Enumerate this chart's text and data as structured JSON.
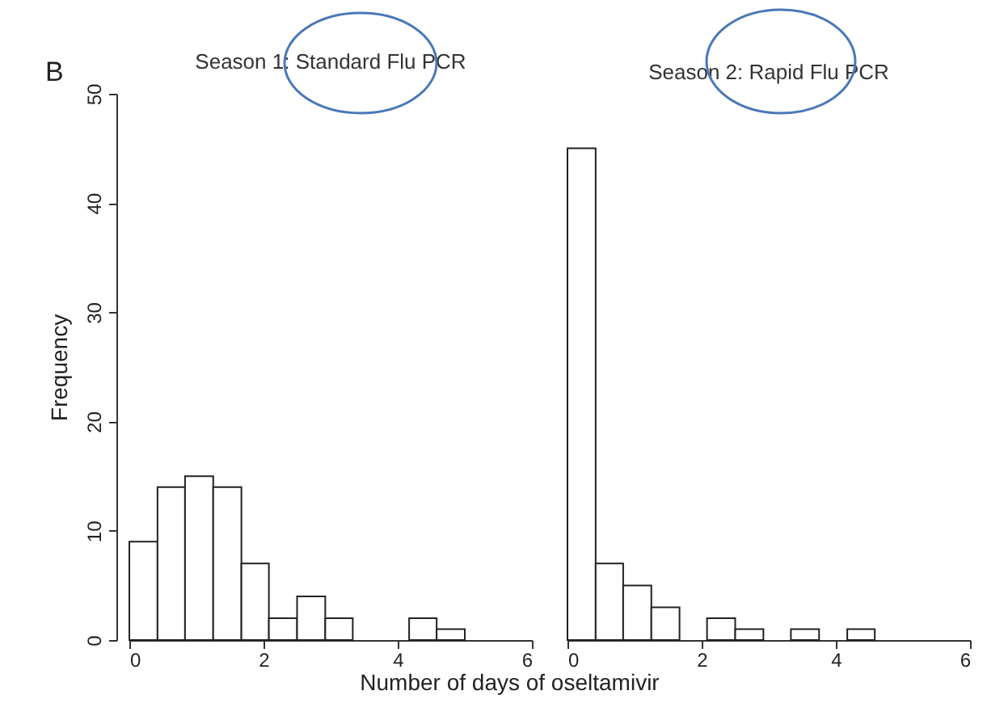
{
  "chart_data": [
    {
      "type": "histogram",
      "title": "Season 1: Standard Flu PCR",
      "ylabel": "Frequency",
      "xlabel": "Number of days of oseltamivir",
      "annotations": [
        "B"
      ],
      "color": "#ffffff",
      "bins": [
        0,
        0.42,
        0.83,
        1.25,
        1.67,
        2.08,
        2.5,
        2.92,
        3.33,
        4.17,
        4.58,
        5
      ],
      "values": [
        9,
        14,
        15,
        14,
        7,
        2,
        4,
        2,
        0,
        2,
        1
      ],
      "xlim": [
        0,
        6
      ],
      "xticks": [
        0,
        2,
        4,
        6
      ],
      "ylim": [
        0,
        50
      ],
      "yticks": [
        0,
        10,
        20,
        30,
        40,
        50
      ],
      "grid": false
    },
    {
      "type": "histogram",
      "title": "Season 2: Rapid Flu PCR",
      "color": "#ffffff",
      "bins": [
        0,
        0.42,
        0.83,
        1.25,
        1.67,
        2.08,
        2.5,
        2.92,
        3.33,
        3.75,
        4.17,
        4.58
      ],
      "values": [
        45,
        7,
        5,
        3,
        0,
        2,
        1,
        0,
        1,
        0,
        1
      ],
      "xlim": [
        0,
        6
      ],
      "xticks": [
        0,
        2,
        4,
        6
      ],
      "ylim": [
        0,
        50
      ],
      "yticks": [
        0,
        10,
        20,
        30,
        40,
        50
      ],
      "tick_labels": "x",
      "grid": false
    }
  ]
}
